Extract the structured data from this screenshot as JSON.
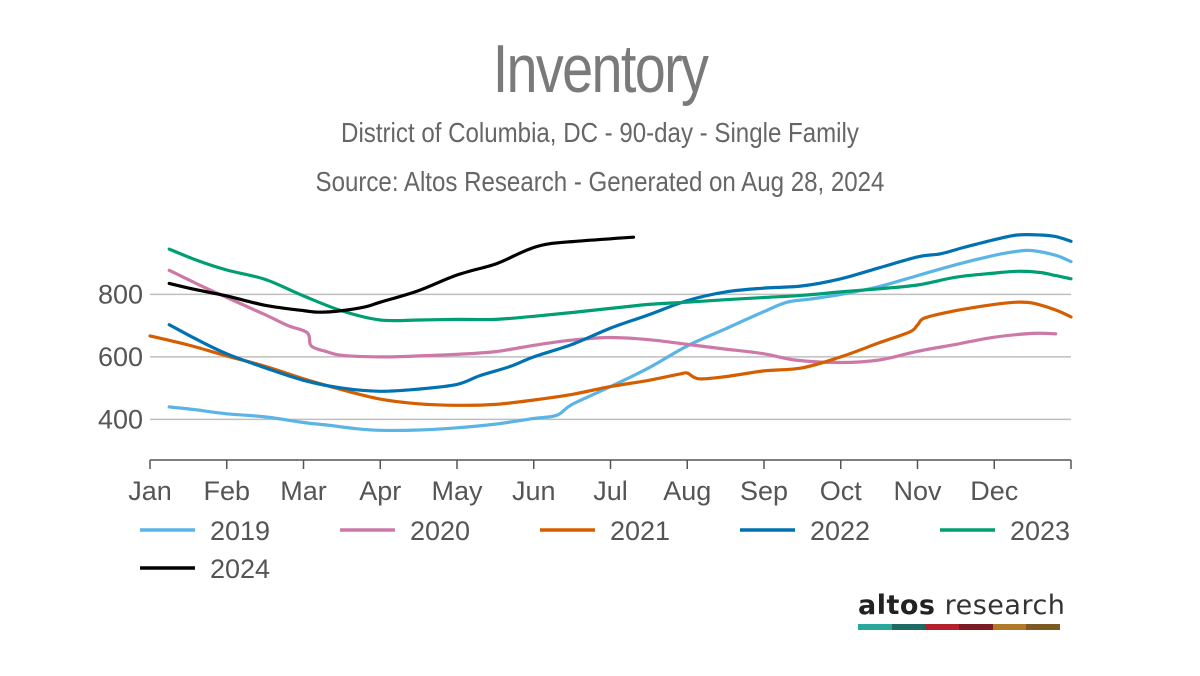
{
  "header": {
    "title": "Inventory",
    "subtitle": "District of Columbia, DC - 90-day - Single Family",
    "source": "Source: Altos Research - Generated on Aug 28, 2024"
  },
  "logo": {
    "brand_bold": "altos",
    "brand_rest": " research",
    "colors": [
      "#2aa79b",
      "#1d6b64",
      "#b5202e",
      "#7b1a22",
      "#b07a2a",
      "#7d5a22"
    ]
  },
  "chart_data": {
    "type": "line",
    "title": "Inventory",
    "xlabel": "",
    "ylabel": "",
    "x_ticks": [
      "Jan",
      "Feb",
      "Mar",
      "Apr",
      "May",
      "Jun",
      "Jul",
      "Aug",
      "Sep",
      "Oct",
      "Nov",
      "Dec"
    ],
    "y_ticks": [
      400,
      600,
      800
    ],
    "ylim": [
      270,
      990
    ],
    "xlim": [
      1,
      13
    ],
    "grid": "horizontal",
    "legend_position": "bottom",
    "x_unit": "month (1 = Jan 1, 13 = end of Dec)",
    "series": [
      {
        "name": "2019",
        "color": "#5ab4e5",
        "points": [
          [
            1.25,
            440
          ],
          [
            1.55,
            432
          ],
          [
            2.0,
            418
          ],
          [
            2.5,
            408
          ],
          [
            3.0,
            390
          ],
          [
            3.3,
            382
          ],
          [
            3.7,
            370
          ],
          [
            4.0,
            365
          ],
          [
            4.5,
            366
          ],
          [
            5.0,
            373
          ],
          [
            5.5,
            385
          ],
          [
            6.0,
            403
          ],
          [
            6.3,
            413
          ],
          [
            6.5,
            448
          ],
          [
            7.0,
            505
          ],
          [
            7.5,
            565
          ],
          [
            8.0,
            635
          ],
          [
            8.5,
            690
          ],
          [
            9.0,
            745
          ],
          [
            9.3,
            775
          ],
          [
            9.6,
            785
          ],
          [
            10.0,
            800
          ],
          [
            10.5,
            825
          ],
          [
            11.0,
            860
          ],
          [
            11.5,
            895
          ],
          [
            12.0,
            925
          ],
          [
            12.3,
            938
          ],
          [
            12.5,
            940
          ],
          [
            12.8,
            925
          ],
          [
            13.0,
            905
          ]
        ]
      },
      {
        "name": "2020",
        "color": "#cc79a7",
        "points": [
          [
            1.25,
            877
          ],
          [
            1.6,
            835
          ],
          [
            2.0,
            790
          ],
          [
            2.5,
            735
          ],
          [
            2.8,
            700
          ],
          [
            3.05,
            677
          ],
          [
            3.1,
            635
          ],
          [
            3.3,
            617
          ],
          [
            3.5,
            605
          ],
          [
            4.0,
            600
          ],
          [
            4.5,
            603
          ],
          [
            5.0,
            608
          ],
          [
            5.5,
            617
          ],
          [
            6.0,
            637
          ],
          [
            6.3,
            648
          ],
          [
            6.6,
            656
          ],
          [
            7.0,
            662
          ],
          [
            7.5,
            655
          ],
          [
            8.0,
            640
          ],
          [
            8.5,
            625
          ],
          [
            9.0,
            610
          ],
          [
            9.4,
            590
          ],
          [
            10.0,
            582
          ],
          [
            10.5,
            590
          ],
          [
            11.0,
            618
          ],
          [
            11.5,
            640
          ],
          [
            12.0,
            663
          ],
          [
            12.5,
            675
          ],
          [
            12.8,
            674
          ]
        ]
      },
      {
        "name": "2021",
        "color": "#d55e00",
        "points": [
          [
            1.0,
            667
          ],
          [
            1.5,
            638
          ],
          [
            2.0,
            603
          ],
          [
            2.5,
            570
          ],
          [
            3.0,
            530
          ],
          [
            3.5,
            495
          ],
          [
            4.0,
            465
          ],
          [
            4.5,
            450
          ],
          [
            5.0,
            445
          ],
          [
            5.5,
            448
          ],
          [
            6.0,
            462
          ],
          [
            6.5,
            480
          ],
          [
            7.0,
            505
          ],
          [
            7.5,
            525
          ],
          [
            7.9,
            545
          ],
          [
            8.0,
            548
          ],
          [
            8.15,
            530
          ],
          [
            8.5,
            537
          ],
          [
            9.0,
            555
          ],
          [
            9.5,
            565
          ],
          [
            10.0,
            600
          ],
          [
            10.5,
            645
          ],
          [
            10.9,
            680
          ],
          [
            11.0,
            702
          ],
          [
            11.1,
            725
          ],
          [
            11.5,
            748
          ],
          [
            12.0,
            768
          ],
          [
            12.3,
            775
          ],
          [
            12.5,
            772
          ],
          [
            12.8,
            750
          ],
          [
            13.0,
            728
          ]
        ]
      },
      {
        "name": "2022",
        "color": "#0072b2",
        "points": [
          [
            1.25,
            703
          ],
          [
            1.6,
            657
          ],
          [
            2.0,
            610
          ],
          [
            2.5,
            565
          ],
          [
            3.0,
            525
          ],
          [
            3.5,
            500
          ],
          [
            4.0,
            490
          ],
          [
            4.5,
            497
          ],
          [
            5.0,
            512
          ],
          [
            5.3,
            540
          ],
          [
            5.7,
            570
          ],
          [
            6.0,
            600
          ],
          [
            6.5,
            640
          ],
          [
            7.0,
            692
          ],
          [
            7.5,
            735
          ],
          [
            8.0,
            780
          ],
          [
            8.5,
            808
          ],
          [
            9.0,
            820
          ],
          [
            9.5,
            827
          ],
          [
            10.0,
            850
          ],
          [
            10.5,
            885
          ],
          [
            11.0,
            920
          ],
          [
            11.3,
            930
          ],
          [
            11.6,
            950
          ],
          [
            12.0,
            975
          ],
          [
            12.3,
            990
          ],
          [
            12.6,
            990
          ],
          [
            12.8,
            985
          ],
          [
            13.0,
            970
          ]
        ]
      },
      {
        "name": "2023",
        "color": "#009e73",
        "points": [
          [
            1.25,
            945
          ],
          [
            1.6,
            910
          ],
          [
            2.0,
            878
          ],
          [
            2.5,
            848
          ],
          [
            3.0,
            795
          ],
          [
            3.5,
            747
          ],
          [
            4.0,
            718
          ],
          [
            4.5,
            718
          ],
          [
            5.0,
            720
          ],
          [
            5.5,
            720
          ],
          [
            6.0,
            730
          ],
          [
            6.5,
            742
          ],
          [
            7.0,
            755
          ],
          [
            7.5,
            768
          ],
          [
            8.0,
            775
          ],
          [
            8.5,
            783
          ],
          [
            9.0,
            790
          ],
          [
            9.5,
            797
          ],
          [
            10.0,
            808
          ],
          [
            10.5,
            818
          ],
          [
            11.0,
            830
          ],
          [
            11.5,
            855
          ],
          [
            12.0,
            868
          ],
          [
            12.3,
            874
          ],
          [
            12.6,
            870
          ],
          [
            12.8,
            860
          ],
          [
            13.0,
            850
          ]
        ]
      },
      {
        "name": "2024",
        "color": "#000000",
        "points": [
          [
            1.25,
            835
          ],
          [
            1.6,
            815
          ],
          [
            2.0,
            795
          ],
          [
            2.5,
            765
          ],
          [
            3.0,
            748
          ],
          [
            3.2,
            743
          ],
          [
            3.5,
            748
          ],
          [
            3.8,
            760
          ],
          [
            4.0,
            775
          ],
          [
            4.5,
            812
          ],
          [
            5.0,
            862
          ],
          [
            5.5,
            897
          ],
          [
            5.8,
            930
          ],
          [
            6.0,
            950
          ],
          [
            6.2,
            962
          ],
          [
            6.5,
            969
          ],
          [
            7.0,
            978
          ],
          [
            7.3,
            983
          ]
        ]
      }
    ]
  }
}
